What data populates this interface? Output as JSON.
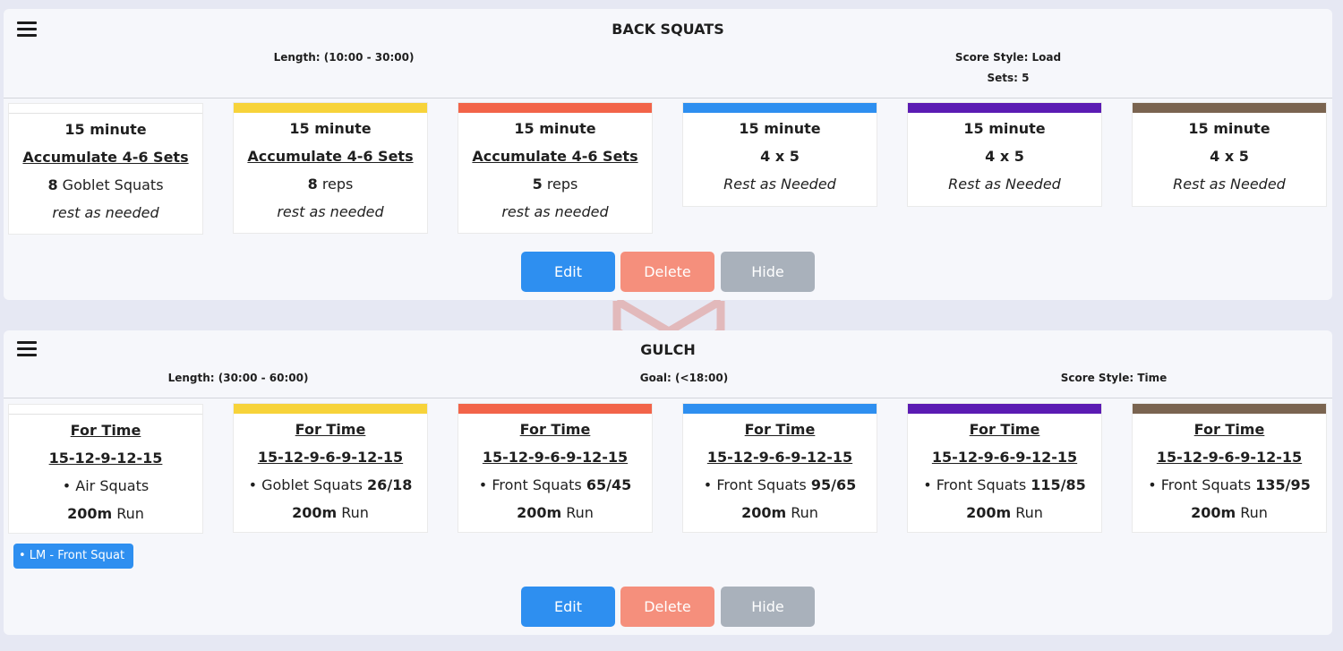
{
  "colors": {
    "page_bg": "#e6e8f3",
    "panel_bg": "#f6f7fb",
    "edit": "#2e8ff0",
    "delete": "#f58f7c",
    "hide": "#a9b1bb",
    "tag": "#2e8ff0",
    "level_colors": [
      "#ffffff",
      "#f7d33a",
      "#f26449",
      "#2e8ff0",
      "#5b1bb3",
      "#7a6450"
    ],
    "watermark": "#d9422f"
  },
  "panels": [
    {
      "title": "BACK SQUATS",
      "menu_icon": "hamburger-menu-icon",
      "meta": {
        "length": "Length: (10:00 - 30:00)",
        "score_style": "Score Style: Load",
        "sets": "Sets: 5"
      },
      "cards": [
        {
          "l1": "15 minute",
          "l2": "Accumulate 4-6 Sets",
          "l3_bold": "8",
          "l3_rest": " Goblet Squats",
          "l4": "rest as needed"
        },
        {
          "l1": "15 minute",
          "l2": "Accumulate 4-6 Sets",
          "l3_bold": "8",
          "l3_rest": " reps",
          "l4": "rest as needed"
        },
        {
          "l1": "15 minute",
          "l2": "Accumulate 4-6 Sets",
          "l3_bold": "5",
          "l3_rest": " reps",
          "l4": "rest as needed"
        },
        {
          "l1": "15 minute",
          "l2": "4 x 5",
          "l3": "Rest as Needed"
        },
        {
          "l1": "15 minute",
          "l2": "4 x 5",
          "l3": "Rest as Needed"
        },
        {
          "l1": "15 minute",
          "l2": "4 x 5",
          "l3": "Rest as Needed"
        }
      ],
      "buttons": {
        "edit": "Edit",
        "delete": "Delete",
        "hide": "Hide"
      }
    },
    {
      "title": "GULCH",
      "menu_icon": "hamburger-menu-icon",
      "meta": {
        "length": "Length: (30:00 - 60:00)",
        "goal": "Goal: (<18:00)",
        "score_style": "Score Style: Time"
      },
      "cards": [
        {
          "l1": "For Time",
          "l2": "15-12-9-12-15",
          "bullet": "•",
          "l3_text": " Air Squats",
          "l3_bold": "",
          "l4_bold": "200m",
          "l4_rest": " Run"
        },
        {
          "l1": "For Time",
          "l2": "15-12-9-6-9-12-15",
          "bullet": "•",
          "l3_text": " Goblet Squats ",
          "l3_bold": "26/18",
          "l4_bold": "200m",
          "l4_rest": " Run"
        },
        {
          "l1": "For Time",
          "l2": "15-12-9-6-9-12-15",
          "bullet": "•",
          "l3_text": "  Front Squats ",
          "l3_bold": "65/45",
          "l4_bold": "200m",
          "l4_rest": " Run"
        },
        {
          "l1": "For Time",
          "l2": "15-12-9-6-9-12-15",
          "bullet": "•",
          "l3_text": "  Front Squats ",
          "l3_bold": "95/65",
          "l4_bold": "200m",
          "l4_rest": " Run"
        },
        {
          "l1": "For Time",
          "l2": "15-12-9-6-9-12-15",
          "bullet": "•",
          "l3_text": "  Front Squats ",
          "l3_bold": "115/85",
          "l4_bold": "200m",
          "l4_rest": " Run"
        },
        {
          "l1": "For Time",
          "l2": "15-12-9-6-9-12-15",
          "bullet": "•",
          "l3_text": "  Front Squats ",
          "l3_bold": "135/95",
          "l4_bold": "200m",
          "l4_rest": " Run"
        }
      ],
      "tag": "• LM - Front Squat",
      "buttons": {
        "edit": "Edit",
        "delete": "Delete",
        "hide": "Hide"
      }
    }
  ]
}
